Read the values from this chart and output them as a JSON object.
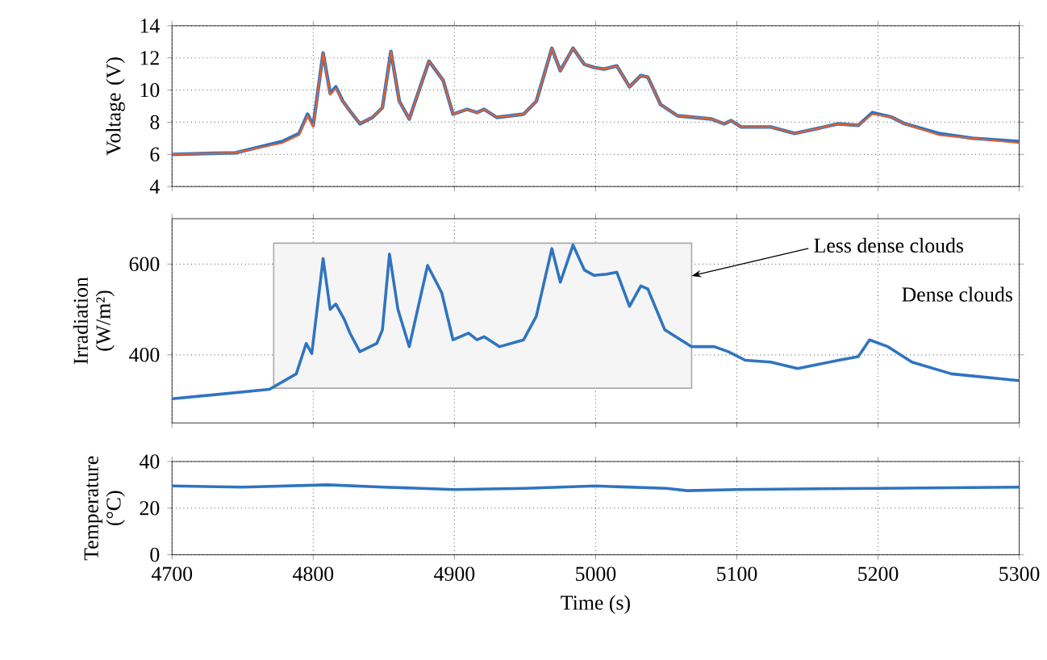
{
  "chart_data": [
    {
      "type": "line",
      "ylabel": "Voltage (V)",
      "xlim": [
        4700,
        5300
      ],
      "xticks": [
        4700,
        4800,
        4900,
        5000,
        5100,
        5200,
        5300
      ],
      "ylim": [
        4,
        14
      ],
      "yticks": [
        4,
        6,
        8,
        10,
        12,
        14
      ],
      "grid": true,
      "tick_labels": "y",
      "x": [
        4700,
        4745,
        4778,
        4790,
        4796,
        4800,
        4807,
        4812,
        4816,
        4821,
        4826,
        4833,
        4842,
        4849,
        4855,
        4861,
        4868,
        4882,
        4892,
        4899,
        4909,
        4916,
        4921,
        4930,
        4949,
        4958,
        4969,
        4975,
        4984,
        4992,
        4999,
        5006,
        5015,
        5024,
        5032,
        5037,
        5046,
        5058,
        5082,
        5091,
        5096,
        5103,
        5124,
        5141,
        5172,
        5186,
        5196,
        5210,
        5219,
        5243,
        5267,
        5300
      ],
      "series": [
        {
          "color": "#2f74c0",
          "values": [
            6.0,
            6.1,
            6.8,
            7.3,
            8.5,
            7.8,
            12.3,
            9.8,
            10.2,
            9.3,
            8.7,
            7.9,
            8.3,
            8.9,
            12.4,
            9.3,
            8.2,
            11.8,
            10.6,
            8.5,
            8.8,
            8.6,
            8.8,
            8.3,
            8.5,
            9.3,
            12.6,
            11.2,
            12.6,
            11.6,
            11.4,
            11.3,
            11.5,
            10.2,
            10.9,
            10.8,
            9.1,
            8.4,
            8.2,
            7.9,
            8.1,
            7.7,
            7.7,
            7.3,
            7.9,
            7.8,
            8.6,
            8.3,
            7.9,
            7.3,
            7.0,
            6.8
          ]
        },
        {
          "color": "#e8602c",
          "values": [
            6.0,
            6.1,
            6.7,
            7.2,
            8.4,
            7.7,
            12.3,
            9.7,
            10.1,
            9.3,
            8.7,
            7.9,
            8.3,
            8.9,
            12.4,
            9.3,
            8.2,
            11.8,
            10.6,
            8.5,
            8.8,
            8.6,
            8.8,
            8.3,
            8.5,
            9.3,
            12.6,
            11.2,
            12.6,
            11.6,
            11.4,
            11.3,
            11.5,
            10.2,
            10.9,
            10.8,
            9.1,
            8.4,
            8.2,
            7.9,
            8.1,
            7.7,
            7.7,
            7.3,
            7.9,
            7.8,
            8.5,
            8.3,
            7.9,
            7.2,
            7.0,
            6.7
          ]
        }
      ]
    },
    {
      "type": "line",
      "ylabel": "Irradiation (W/m²)",
      "xlim": [
        4700,
        5300
      ],
      "xticks": [
        4700,
        4800,
        4900,
        5000,
        5100,
        5200,
        5300
      ],
      "ylim": [
        250,
        700
      ],
      "yticks": [
        400,
        600
      ],
      "grid": true,
      "tick_labels": "y",
      "x": [
        4700,
        4769,
        4788,
        4795,
        4799,
        4807,
        4812,
        4816,
        4822,
        4826,
        4833,
        4845,
        4849,
        4854,
        4860,
        4868,
        4881,
        4891,
        4899,
        4910,
        4916,
        4921,
        4932,
        4949,
        4958,
        4969,
        4975,
        4984,
        4992,
        4999,
        5008,
        5015,
        5024,
        5032,
        5037,
        5049,
        5068,
        5084,
        5094,
        5106,
        5124,
        5143,
        5172,
        5186,
        5194,
        5207,
        5224,
        5252,
        5300
      ],
      "series": [
        {
          "color": "#2f74c0",
          "values": [
            303,
            324,
            358,
            425,
            403,
            612,
            500,
            512,
            478,
            448,
            407,
            425,
            455,
            622,
            500,
            418,
            597,
            537,
            433,
            448,
            433,
            440,
            418,
            433,
            485,
            634,
            560,
            642,
            587,
            575,
            578,
            582,
            507,
            552,
            545,
            455,
            418,
            418,
            407,
            388,
            384,
            370,
            388,
            396,
            433,
            418,
            384,
            358,
            343
          ]
        }
      ],
      "bands": [
        {
          "axis": "x",
          "from": 4772,
          "to": 5068,
          "label": "Less dense clouds",
          "color": "#aaaaaa"
        }
      ],
      "annotations": [
        "Dense clouds"
      ]
    },
    {
      "type": "line",
      "ylabel": "Temperature (°C)",
      "xlabel": "Time (s)",
      "xlim": [
        4700,
        5300
      ],
      "xticks": [
        4700,
        4800,
        4900,
        5000,
        5100,
        5200,
        5300
      ],
      "ylim": [
        0,
        40
      ],
      "yticks": [
        0,
        20,
        40
      ],
      "grid": true,
      "x": [
        4700,
        4750,
        4810,
        4850,
        4900,
        4950,
        5000,
        5050,
        5065,
        5100,
        5200,
        5300
      ],
      "series": [
        {
          "color": "#2f74c0",
          "values": [
            29.5,
            29,
            30,
            29,
            28,
            28.5,
            29.5,
            28.5,
            27.5,
            28,
            28.5,
            29
          ]
        }
      ]
    }
  ]
}
